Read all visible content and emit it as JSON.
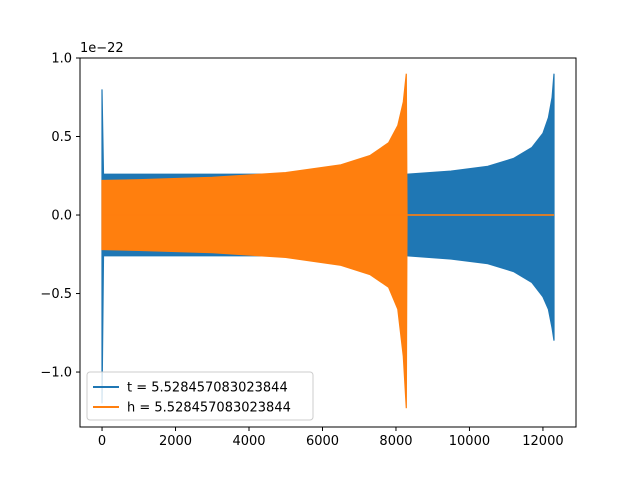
{
  "chart_data": {
    "type": "line",
    "title": "",
    "xlabel": "",
    "ylabel": "",
    "y_offset_label": "1e−22",
    "xlim": [
      -600,
      12900
    ],
    "ylim": [
      -1.35,
      1.0
    ],
    "x_ticks": [
      0,
      2000,
      4000,
      6000,
      8000,
      10000,
      12000
    ],
    "x_tick_labels": [
      "0",
      "2000",
      "4000",
      "6000",
      "8000",
      "10000",
      "12000"
    ],
    "y_ticks": [
      -1.0,
      -0.5,
      0.0,
      0.5,
      1.0
    ],
    "y_tick_labels": [
      "−1.0",
      "−0.5",
      "0.0",
      "0.5",
      "1.0"
    ],
    "grid": false,
    "legend_position": "lower-left",
    "series": [
      {
        "name": "t = 5.528457083023844",
        "color": "#1f77b4",
        "shape": "chirp-envelope",
        "envelope": [
          [
            0,
            0.8,
            -1.2
          ],
          [
            40,
            0.26,
            -0.26
          ],
          [
            8300,
            0.26,
            -0.26
          ],
          [
            9500,
            0.28,
            -0.28
          ],
          [
            10500,
            0.31,
            -0.31
          ],
          [
            11200,
            0.36,
            -0.36
          ],
          [
            11700,
            0.43,
            -0.43
          ],
          [
            12000,
            0.52,
            -0.52
          ],
          [
            12150,
            0.62,
            -0.6
          ],
          [
            12250,
            0.75,
            -0.72
          ],
          [
            12300,
            0.9,
            -0.8
          ]
        ]
      },
      {
        "name": "h = 5.528457083023844",
        "color": "#ff7f0e",
        "shape": "chirp-envelope",
        "envelope": [
          [
            0,
            0.22,
            -0.22
          ],
          [
            1000,
            0.225,
            -0.225
          ],
          [
            3000,
            0.24,
            -0.24
          ],
          [
            5000,
            0.27,
            -0.27
          ],
          [
            6500,
            0.32,
            -0.32
          ],
          [
            7300,
            0.38,
            -0.38
          ],
          [
            7800,
            0.46,
            -0.46
          ],
          [
            8050,
            0.57,
            -0.6
          ],
          [
            8200,
            0.72,
            -0.9
          ],
          [
            8280,
            0.9,
            -1.23
          ],
          [
            8300,
            0.0,
            0.0
          ],
          [
            12300,
            0.0,
            0.0
          ]
        ]
      }
    ]
  }
}
